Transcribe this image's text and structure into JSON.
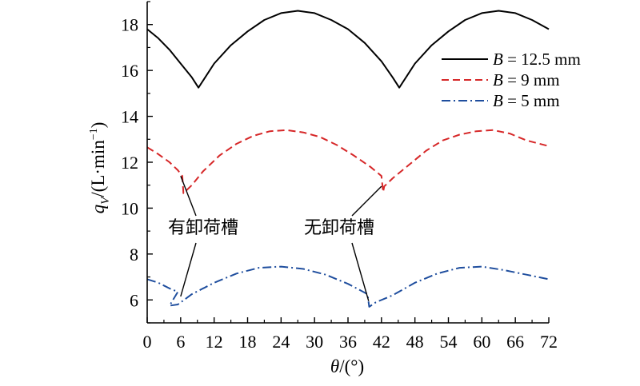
{
  "chart_data": {
    "type": "line",
    "xlabel": {
      "var": "θ",
      "rest": "/(°)"
    },
    "ylabel": {
      "var": "q",
      "sub": "V",
      "rest": "/(L·min",
      "sup": "−1",
      "close": ")"
    },
    "xlim": [
      0,
      72
    ],
    "ylim": [
      5,
      19
    ],
    "xticks": [
      "0",
      "6",
      "12",
      "18",
      "24",
      "30",
      "36",
      "42",
      "48",
      "54",
      "60",
      "66",
      "72"
    ],
    "yticks": [
      "6",
      "8",
      "10",
      "12",
      "14",
      "16",
      "18"
    ],
    "grid": false,
    "legend_position": "top-right",
    "series": [
      {
        "name": "B = 12.5 mm",
        "name_var": "B",
        "name_rest": " = 12.5 mm",
        "color": "#000000",
        "style": "solid",
        "x": [
          0,
          2,
          4,
          6,
          8,
          9.2,
          12,
          15,
          18,
          21,
          24,
          27,
          30,
          33,
          36,
          39,
          42,
          44,
          45.2,
          48,
          51,
          54,
          57,
          60,
          63,
          66,
          69,
          72
        ],
        "y": [
          17.8,
          17.4,
          16.9,
          16.3,
          15.7,
          15.25,
          16.3,
          17.1,
          17.7,
          18.2,
          18.5,
          18.6,
          18.5,
          18.2,
          17.8,
          17.2,
          16.4,
          15.7,
          15.25,
          16.3,
          17.1,
          17.7,
          18.2,
          18.5,
          18.6,
          18.5,
          18.2,
          17.8
        ]
      },
      {
        "name": "B = 9 mm",
        "name_var": "B",
        "name_rest": " = 9 mm",
        "color": "#d62728",
        "style": "dashed",
        "x": [
          0,
          2,
          4,
          5.5,
          6.3,
          6.5,
          8,
          10,
          13,
          16,
          19,
          22,
          25,
          28,
          31,
          34,
          37,
          40,
          42,
          42.3,
          42.5,
          44,
          47,
          50,
          53,
          56,
          59,
          62,
          65,
          68,
          72
        ],
        "y": [
          12.65,
          12.35,
          12.0,
          11.65,
          11.4,
          10.65,
          11.0,
          11.6,
          12.3,
          12.8,
          13.15,
          13.35,
          13.4,
          13.3,
          13.1,
          12.75,
          12.3,
          11.8,
          11.4,
          10.7,
          10.95,
          11.3,
          11.9,
          12.5,
          12.95,
          13.2,
          13.35,
          13.4,
          13.25,
          12.95,
          12.7
        ]
      },
      {
        "name": "B = 5 mm",
        "name_var": "B",
        "name_rest": " = 5 mm",
        "color": "#1f4e9e",
        "style": "dashdot",
        "x": [
          0,
          2,
          4,
          5.5,
          4,
          5.5,
          8,
          12,
          16,
          20,
          24,
          28,
          32,
          36,
          38,
          39.5,
          39.8,
          41,
          44,
          48,
          52,
          56,
          60,
          64,
          68,
          72
        ],
        "y": [
          6.9,
          6.75,
          6.5,
          6.35,
          5.75,
          5.8,
          6.25,
          6.75,
          7.15,
          7.4,
          7.45,
          7.35,
          7.1,
          6.7,
          6.45,
          6.25,
          5.7,
          5.9,
          6.2,
          6.75,
          7.15,
          7.4,
          7.45,
          7.3,
          7.1,
          6.9
        ]
      }
    ],
    "annotations": [
      {
        "text": "有卸荷槽",
        "targets": [
          [
            6.0,
            11.4
          ],
          [
            6.0,
            6.15
          ]
        ]
      },
      {
        "text": "无卸荷槽",
        "targets": [
          [
            42.0,
            10.95
          ],
          [
            39.7,
            5.95
          ]
        ]
      }
    ]
  }
}
